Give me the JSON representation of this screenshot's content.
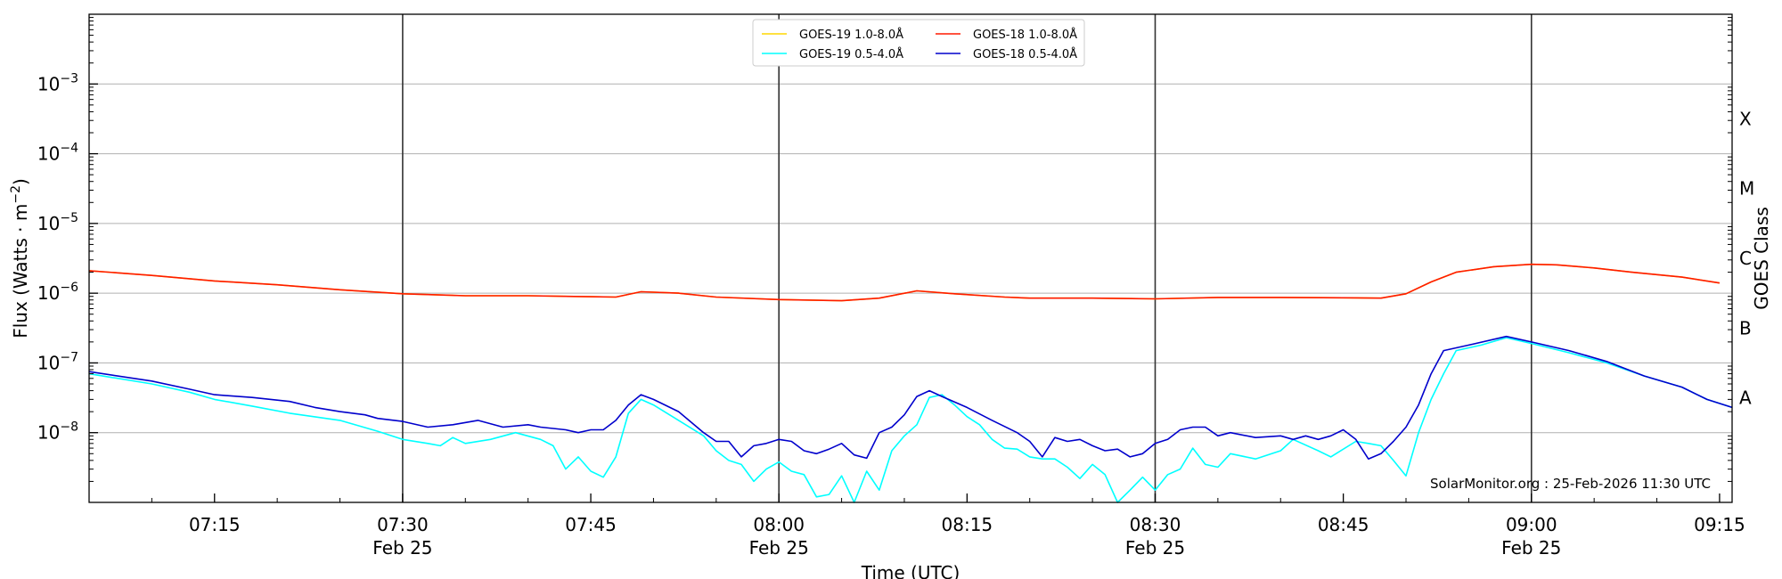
{
  "chart_data": {
    "type": "line",
    "title": "",
    "xlabel": "Time (UTC)",
    "ylabel_main": "Flux (Watts · m",
    "ylabel_sup": "−2",
    "ylabel_close": ")",
    "y2label": "GOES Class",
    "y_scale": "log",
    "xlim": [
      "07:05",
      "09:16"
    ],
    "ylim": [
      1e-09,
      0.01
    ],
    "grid": "horizontal at each decade, vertical lines at each half hour",
    "legend_position": "top-center",
    "x_ticks": [
      {
        "time": "07:15",
        "label": "07:15",
        "sub": ""
      },
      {
        "time": "07:30",
        "label": "07:30",
        "sub": "Feb 25"
      },
      {
        "time": "07:45",
        "label": "07:45",
        "sub": ""
      },
      {
        "time": "08:00",
        "label": "08:00",
        "sub": "Feb 25"
      },
      {
        "time": "08:15",
        "label": "08:15",
        "sub": ""
      },
      {
        "time": "08:30",
        "label": "08:30",
        "sub": "Feb 25"
      },
      {
        "time": "08:45",
        "label": "08:45",
        "sub": ""
      },
      {
        "time": "09:00",
        "label": "09:00",
        "sub": "Feb 25"
      },
      {
        "time": "09:15",
        "label": "09:15",
        "sub": ""
      }
    ],
    "y_ticks": [
      {
        "exp": -8,
        "base": "10",
        "sup": "−8"
      },
      {
        "exp": -7,
        "base": "10",
        "sup": "−7"
      },
      {
        "exp": -6,
        "base": "10",
        "sup": "−6"
      },
      {
        "exp": -5,
        "base": "10",
        "sup": "−5"
      },
      {
        "exp": -4,
        "base": "10",
        "sup": "−4"
      },
      {
        "exp": -3,
        "base": "10",
        "sup": "−3"
      }
    ],
    "goes_classes": [
      {
        "label": "A",
        "flux": 3.16e-08
      },
      {
        "label": "B",
        "flux": 3.16e-07
      },
      {
        "label": "C",
        "flux": 3.16e-06
      },
      {
        "label": "M",
        "flux": 3.16e-05
      },
      {
        "label": "X",
        "flux": 0.000316
      }
    ],
    "credit": "SolarMonitor.org : 25-Feb-2026 11:30 UTC",
    "series": [
      {
        "name": "GOES-19 1.0-8.0Å",
        "color": "#ffd700",
        "points": [
          [
            "07:05",
            2.1e-06
          ],
          [
            "07:10",
            1.8e-06
          ],
          [
            "07:15",
            1.5e-06
          ],
          [
            "07:20",
            1.32e-06
          ],
          [
            "07:25",
            1.12e-06
          ],
          [
            "07:30",
            9.8e-07
          ],
          [
            "07:35",
            9.2e-07
          ],
          [
            "07:40",
            9.2e-07
          ],
          [
            "07:45",
            8.9e-07
          ],
          [
            "07:47",
            8.8e-07
          ],
          [
            "07:49",
            1.05e-06
          ],
          [
            "07:52",
            1e-06
          ],
          [
            "07:55",
            8.8e-07
          ],
          [
            "08:00",
            8.1e-07
          ],
          [
            "08:05",
            7.8e-07
          ],
          [
            "08:08",
            8.5e-07
          ],
          [
            "08:11",
            1.08e-06
          ],
          [
            "08:14",
            9.8e-07
          ],
          [
            "08:18",
            8.8e-07
          ],
          [
            "08:20",
            8.5e-07
          ],
          [
            "08:25",
            8.5e-07
          ],
          [
            "08:30",
            8.3e-07
          ],
          [
            "08:35",
            8.7e-07
          ],
          [
            "08:40",
            8.7e-07
          ],
          [
            "08:45",
            8.6e-07
          ],
          [
            "08:48",
            8.5e-07
          ],
          [
            "08:50",
            9.8e-07
          ],
          [
            "08:52",
            1.45e-06
          ],
          [
            "08:54",
            2e-06
          ],
          [
            "08:57",
            2.4e-06
          ],
          [
            "09:00",
            2.6e-06
          ],
          [
            "09:02",
            2.55e-06
          ],
          [
            "09:05",
            2.3e-06
          ],
          [
            "09:08",
            2e-06
          ],
          [
            "09:12",
            1.7e-06
          ],
          [
            "09:15",
            1.4e-06
          ]
        ]
      },
      {
        "name": "GOES-18 1.0-8.0Å",
        "color": "#ff1a00",
        "points": [
          [
            "07:05",
            2.1e-06
          ],
          [
            "07:10",
            1.8e-06
          ],
          [
            "07:15",
            1.5e-06
          ],
          [
            "07:20",
            1.32e-06
          ],
          [
            "07:25",
            1.12e-06
          ],
          [
            "07:30",
            9.8e-07
          ],
          [
            "07:35",
            9.2e-07
          ],
          [
            "07:40",
            9.2e-07
          ],
          [
            "07:45",
            8.9e-07
          ],
          [
            "07:47",
            8.8e-07
          ],
          [
            "07:49",
            1.05e-06
          ],
          [
            "07:52",
            1e-06
          ],
          [
            "07:55",
            8.8e-07
          ],
          [
            "08:00",
            8.1e-07
          ],
          [
            "08:05",
            7.8e-07
          ],
          [
            "08:08",
            8.5e-07
          ],
          [
            "08:11",
            1.08e-06
          ],
          [
            "08:14",
            9.8e-07
          ],
          [
            "08:18",
            8.8e-07
          ],
          [
            "08:20",
            8.5e-07
          ],
          [
            "08:25",
            8.5e-07
          ],
          [
            "08:30",
            8.3e-07
          ],
          [
            "08:35",
            8.7e-07
          ],
          [
            "08:40",
            8.7e-07
          ],
          [
            "08:45",
            8.6e-07
          ],
          [
            "08:48",
            8.5e-07
          ],
          [
            "08:50",
            9.8e-07
          ],
          [
            "08:52",
            1.45e-06
          ],
          [
            "08:54",
            2e-06
          ],
          [
            "08:57",
            2.4e-06
          ],
          [
            "09:00",
            2.6e-06
          ],
          [
            "09:02",
            2.55e-06
          ],
          [
            "09:05",
            2.3e-06
          ],
          [
            "09:08",
            2e-06
          ],
          [
            "09:12",
            1.7e-06
          ],
          [
            "09:15",
            1.4e-06
          ]
        ]
      },
      {
        "name": "GOES-19 0.5-4.0Å",
        "color": "#00ffff",
        "points": [
          [
            "07:05",
            7e-08
          ],
          [
            "07:10",
            5e-08
          ],
          [
            "07:13",
            3.8e-08
          ],
          [
            "07:15",
            3e-08
          ],
          [
            "07:18",
            2.4e-08
          ],
          [
            "07:21",
            1.9e-08
          ],
          [
            "07:25",
            1.5e-08
          ],
          [
            "07:28",
            1.05e-08
          ],
          [
            "07:30",
            8e-09
          ],
          [
            "07:32",
            7e-09
          ],
          [
            "07:33",
            6.5e-09
          ],
          [
            "07:34",
            8.5e-09
          ],
          [
            "07:35",
            7e-09
          ],
          [
            "07:37",
            8e-09
          ],
          [
            "07:39",
            1e-08
          ],
          [
            "07:41",
            8e-09
          ],
          [
            "07:42",
            6.5e-09
          ],
          [
            "07:43",
            3e-09
          ],
          [
            "07:44",
            4.5e-09
          ],
          [
            "07:45",
            2.8e-09
          ],
          [
            "07:46",
            2.3e-09
          ],
          [
            "07:47",
            4.5e-09
          ],
          [
            "07:48",
            1.9e-08
          ],
          [
            "07:49",
            3e-08
          ],
          [
            "07:50",
            2.5e-08
          ],
          [
            "07:52",
            1.5e-08
          ],
          [
            "07:54",
            9e-09
          ],
          [
            "07:55",
            5.5e-09
          ],
          [
            "07:56",
            4e-09
          ],
          [
            "07:57",
            3.5e-09
          ],
          [
            "07:58",
            2e-09
          ],
          [
            "07:59",
            3e-09
          ],
          [
            "08:00",
            3.8e-09
          ],
          [
            "08:01",
            2.8e-09
          ],
          [
            "08:02",
            2.5e-09
          ],
          [
            "08:03",
            1.2e-09
          ],
          [
            "08:04",
            1.3e-09
          ],
          [
            "08:05",
            2.4e-09
          ],
          [
            "08:06",
            1e-09
          ],
          [
            "08:07",
            2.8e-09
          ],
          [
            "08:08",
            1.5e-09
          ],
          [
            "08:09",
            5.5e-09
          ],
          [
            "08:10",
            9e-09
          ],
          [
            "08:11",
            1.3e-08
          ],
          [
            "08:12",
            3.2e-08
          ],
          [
            "08:13",
            3.5e-08
          ],
          [
            "08:14",
            2.5e-08
          ],
          [
            "08:15",
            1.7e-08
          ],
          [
            "08:16",
            1.3e-08
          ],
          [
            "08:17",
            8e-09
          ],
          [
            "08:18",
            6e-09
          ],
          [
            "08:19",
            5.8e-09
          ],
          [
            "08:20",
            4.5e-09
          ],
          [
            "08:21",
            4.2e-09
          ],
          [
            "08:22",
            4.2e-09
          ],
          [
            "08:23",
            3.2e-09
          ],
          [
            "08:24",
            2.2e-09
          ],
          [
            "08:25",
            3.5e-09
          ],
          [
            "08:26",
            2.5e-09
          ],
          [
            "08:27",
            1e-09
          ],
          [
            "08:28",
            1.5e-09
          ],
          [
            "08:29",
            2.3e-09
          ],
          [
            "08:30",
            1.5e-09
          ],
          [
            "08:31",
            2.5e-09
          ],
          [
            "08:32",
            3e-09
          ],
          [
            "08:33",
            6e-09
          ],
          [
            "08:34",
            3.5e-09
          ],
          [
            "08:35",
            3.2e-09
          ],
          [
            "08:36",
            5e-09
          ],
          [
            "08:38",
            4.2e-09
          ],
          [
            "08:40",
            5.5e-09
          ],
          [
            "08:41",
            8e-09
          ],
          [
            "08:43",
            5.5e-09
          ],
          [
            "08:44",
            4.5e-09
          ],
          [
            "08:46",
            7.5e-09
          ],
          [
            "08:47",
            7e-09
          ],
          [
            "08:48",
            6.5e-09
          ],
          [
            "08:49",
            4e-09
          ],
          [
            "08:50",
            2.4e-09
          ],
          [
            "08:51",
            1e-08
          ],
          [
            "08:52",
            3e-08
          ],
          [
            "08:53",
            7e-08
          ],
          [
            "08:54",
            1.5e-07
          ],
          [
            "08:56",
            1.8e-07
          ],
          [
            "08:58",
            2.3e-07
          ],
          [
            "09:00",
            1.9e-07
          ],
          [
            "09:03",
            1.4e-07
          ],
          [
            "09:06",
            1e-07
          ],
          [
            "09:09",
            6.5e-08
          ],
          [
            "09:12",
            4.5e-08
          ],
          [
            "09:14",
            3e-08
          ],
          [
            "09:16",
            2.3e-08
          ]
        ]
      },
      {
        "name": "GOES-18 0.5-4.0Å",
        "color": "#0000cc",
        "points": [
          [
            "07:05",
            7.5e-08
          ],
          [
            "07:10",
            5.5e-08
          ],
          [
            "07:13",
            4.2e-08
          ],
          [
            "07:15",
            3.5e-08
          ],
          [
            "07:18",
            3.2e-08
          ],
          [
            "07:21",
            2.8e-08
          ],
          [
            "07:23",
            2.3e-08
          ],
          [
            "07:25",
            2e-08
          ],
          [
            "07:27",
            1.8e-08
          ],
          [
            "07:28",
            1.6e-08
          ],
          [
            "07:30",
            1.45e-08
          ],
          [
            "07:32",
            1.2e-08
          ],
          [
            "07:34",
            1.3e-08
          ],
          [
            "07:36",
            1.5e-08
          ],
          [
            "07:38",
            1.2e-08
          ],
          [
            "07:40",
            1.3e-08
          ],
          [
            "07:41",
            1.2e-08
          ],
          [
            "07:43",
            1.1e-08
          ],
          [
            "07:44",
            1e-08
          ],
          [
            "07:45",
            1.1e-08
          ],
          [
            "07:46",
            1.1e-08
          ],
          [
            "07:47",
            1.5e-08
          ],
          [
            "07:48",
            2.5e-08
          ],
          [
            "07:49",
            3.5e-08
          ],
          [
            "07:50",
            3e-08
          ],
          [
            "07:52",
            2e-08
          ],
          [
            "07:54",
            1e-08
          ],
          [
            "07:55",
            7.5e-09
          ],
          [
            "07:56",
            7.5e-09
          ],
          [
            "07:57",
            4.5e-09
          ],
          [
            "07:58",
            6.5e-09
          ],
          [
            "07:59",
            7e-09
          ],
          [
            "08:00",
            8e-09
          ],
          [
            "08:01",
            7.5e-09
          ],
          [
            "08:02",
            5.5e-09
          ],
          [
            "08:03",
            5e-09
          ],
          [
            "08:04",
            5.8e-09
          ],
          [
            "08:05",
            7e-09
          ],
          [
            "08:06",
            4.8e-09
          ],
          [
            "08:07",
            4.3e-09
          ],
          [
            "08:08",
            1e-08
          ],
          [
            "08:09",
            1.2e-08
          ],
          [
            "08:10",
            1.8e-08
          ],
          [
            "08:11",
            3.3e-08
          ],
          [
            "08:12",
            4e-08
          ],
          [
            "08:13",
            3.3e-08
          ],
          [
            "08:15",
            2.3e-08
          ],
          [
            "08:17",
            1.5e-08
          ],
          [
            "08:19",
            1e-08
          ],
          [
            "08:20",
            7.5e-09
          ],
          [
            "08:21",
            4.5e-09
          ],
          [
            "08:22",
            8.5e-09
          ],
          [
            "08:23",
            7.5e-09
          ],
          [
            "08:24",
            8e-09
          ],
          [
            "08:25",
            6.5e-09
          ],
          [
            "08:26",
            5.5e-09
          ],
          [
            "08:27",
            5.8e-09
          ],
          [
            "08:28",
            4.5e-09
          ],
          [
            "08:29",
            5e-09
          ],
          [
            "08:30",
            7e-09
          ],
          [
            "08:31",
            8e-09
          ],
          [
            "08:32",
            1.1e-08
          ],
          [
            "08:33",
            1.2e-08
          ],
          [
            "08:34",
            1.2e-08
          ],
          [
            "08:35",
            9e-09
          ],
          [
            "08:36",
            1e-08
          ],
          [
            "08:38",
            8.5e-09
          ],
          [
            "08:40",
            9e-09
          ],
          [
            "08:41",
            8e-09
          ],
          [
            "08:42",
            9e-09
          ],
          [
            "08:43",
            8e-09
          ],
          [
            "08:44",
            9e-09
          ],
          [
            "08:45",
            1.1e-08
          ],
          [
            "08:46",
            8e-09
          ],
          [
            "08:47",
            4.2e-09
          ],
          [
            "08:48",
            5e-09
          ],
          [
            "08:49",
            7.5e-09
          ],
          [
            "08:50",
            1.2e-08
          ],
          [
            "08:51",
            2.5e-08
          ],
          [
            "08:52",
            7e-08
          ],
          [
            "08:53",
            1.5e-07
          ],
          [
            "08:55",
            1.8e-07
          ],
          [
            "08:58",
            2.4e-07
          ],
          [
            "09:00",
            2e-07
          ],
          [
            "09:03",
            1.5e-07
          ],
          [
            "09:06",
            1.05e-07
          ],
          [
            "09:09",
            6.5e-08
          ],
          [
            "09:12",
            4.5e-08
          ],
          [
            "09:14",
            3e-08
          ],
          [
            "09:16",
            2.3e-08
          ]
        ]
      }
    ]
  }
}
